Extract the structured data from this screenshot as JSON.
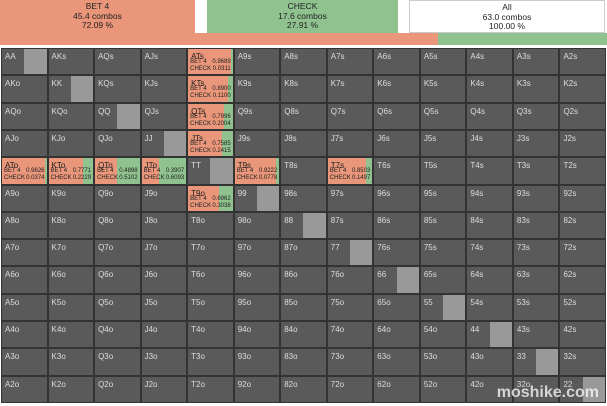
{
  "summary": [
    {
      "label": "BET 4",
      "combos": "45.4 combos",
      "percent": "72.09 %"
    },
    {
      "label": "CHECK",
      "combos": "17.6 combos",
      "percent": "27.91 %"
    },
    {
      "label": "All",
      "combos": "63.0 combos",
      "percent": "100.00 %"
    }
  ],
  "grid": [
    [
      "AA",
      "AKs",
      "AQs",
      "AJs",
      "ATs",
      "A9s",
      "A8s",
      "A7s",
      "A6s",
      "A5s",
      "A4s",
      "A3s",
      "A2s"
    ],
    [
      "AKo",
      "KK",
      "KQs",
      "KJs",
      "KTs",
      "K9s",
      "K8s",
      "K7s",
      "K6s",
      "K5s",
      "K4s",
      "K3s",
      "K2s"
    ],
    [
      "AQo",
      "KQo",
      "QQ",
      "QJs",
      "QTs",
      "Q9s",
      "Q8s",
      "Q7s",
      "Q6s",
      "Q5s",
      "Q4s",
      "Q3s",
      "Q2s"
    ],
    [
      "AJo",
      "KJo",
      "QJo",
      "JJ",
      "JTs",
      "J9s",
      "J8s",
      "J7s",
      "J6s",
      "J5s",
      "J4s",
      "J3s",
      "J2s"
    ],
    [
      "ATo",
      "KTo",
      "QTo",
      "JTo",
      "TT",
      "T9s",
      "T8s",
      "T7s",
      "T6s",
      "T5s",
      "T4s",
      "T3s",
      "T2s"
    ],
    [
      "A9o",
      "K9o",
      "Q9o",
      "J9o",
      "T9o",
      "99",
      "98s",
      "97s",
      "96s",
      "95s",
      "94s",
      "93s",
      "92s"
    ],
    [
      "A8o",
      "K8o",
      "Q8o",
      "J8o",
      "T8o",
      "98o",
      "88",
      "87s",
      "86s",
      "85s",
      "84s",
      "83s",
      "82s"
    ],
    [
      "A7o",
      "K7o",
      "Q7o",
      "J7o",
      "T7o",
      "97o",
      "87o",
      "77",
      "76s",
      "75s",
      "74s",
      "73s",
      "72s"
    ],
    [
      "A6o",
      "K6o",
      "Q6o",
      "J6o",
      "T6o",
      "96o",
      "86o",
      "76o",
      "66",
      "65s",
      "64s",
      "63s",
      "62s"
    ],
    [
      "A5o",
      "K5o",
      "Q5o",
      "J5o",
      "T5o",
      "95o",
      "85o",
      "75o",
      "65o",
      "55",
      "54s",
      "53s",
      "52s"
    ],
    [
      "A4o",
      "K4o",
      "Q4o",
      "J4o",
      "T4o",
      "94o",
      "84o",
      "74o",
      "64o",
      "54o",
      "44",
      "43s",
      "42s"
    ],
    [
      "A3o",
      "K3o",
      "Q3o",
      "J3o",
      "T3o",
      "93o",
      "83o",
      "73o",
      "63o",
      "53o",
      "43o",
      "33",
      "32s"
    ],
    [
      "A2o",
      "K2o",
      "Q2o",
      "J2o",
      "T2o",
      "92o",
      "82o",
      "72o",
      "62o",
      "52o",
      "42o",
      "32o",
      "22"
    ]
  ],
  "strategies": [
    {
      "hand": "ATs",
      "bet": "0.9689",
      "check": "0.0311"
    },
    {
      "hand": "KTs",
      "bet": "0.8900",
      "check": "0.1100"
    },
    {
      "hand": "QTs",
      "bet": "0.7996",
      "check": "0.2004"
    },
    {
      "hand": "JTs",
      "bet": "0.7585",
      "check": "0.2415"
    },
    {
      "hand": "ATo",
      "bet": "0.9626",
      "check": "0.0374"
    },
    {
      "hand": "KTo",
      "bet": "0.7771",
      "check": "0.2229"
    },
    {
      "hand": "QTo",
      "bet": "0.4898",
      "check": "0.5102"
    },
    {
      "hand": "JTo",
      "bet": "0.3907",
      "check": "0.6093"
    },
    {
      "hand": "T9s",
      "bet": "0.9222",
      "check": "0.0778"
    },
    {
      "hand": "T7s",
      "bet": "0.8503",
      "check": "0.1497"
    },
    {
      "hand": "T9o",
      "bet": "0.6962",
      "check": "0.3038"
    }
  ],
  "watermark": "moshike.com"
}
